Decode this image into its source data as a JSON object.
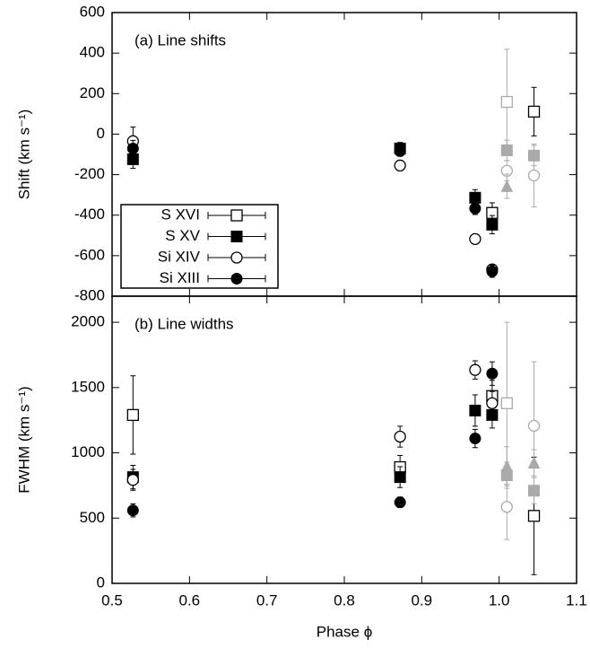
{
  "chart_data": [
    {
      "type": "scatter",
      "annotation": "(a) Line shifts",
      "ylabel": "Shift (km s⁻¹)",
      "xlim": [
        0.5,
        1.1
      ],
      "xticks": [
        0.5,
        0.6,
        0.7,
        0.8,
        0.9,
        1,
        1.1
      ],
      "ylim": [
        -800,
        600
      ],
      "yticks": [
        -800,
        -600,
        -400,
        -200,
        0,
        200,
        400,
        600
      ],
      "legend": "lower left",
      "series": [
        {
          "name": "S XVI",
          "color": "#000000",
          "marker": "open-square",
          "x": [
            0.991,
            1.045
          ],
          "values": [
            -389,
            111
          ],
          "errors": [
            50,
            120
          ]
        },
        {
          "name": "S XV",
          "color": "#000000",
          "marker": "filled-square",
          "x": [
            0.527,
            0.872,
            0.969,
            0.991
          ],
          "values": [
            -124,
            -71,
            -314,
            -447
          ],
          "errors": [
            45,
            30,
            40,
            45
          ]
        },
        {
          "name": "Si XIV",
          "color": "#000000",
          "marker": "open-circle",
          "x": [
            0.527,
            0.872,
            0.969,
            0.991
          ],
          "values": [
            -35,
            -155,
            -518,
            -668
          ],
          "errors": [
            70,
            25,
            25,
            25
          ]
        },
        {
          "name": "Si XIII",
          "color": "#000000",
          "marker": "filled-circle",
          "x": [
            0.527,
            0.872,
            0.969,
            0.991
          ],
          "values": [
            -71,
            -84,
            -367,
            -677
          ],
          "errors": [
            40,
            25,
            30,
            30
          ]
        },
        {
          "color": "#aaaaaa",
          "marker": "open-square",
          "x": [
            1.01
          ],
          "values": [
            159
          ],
          "errors": [
            260
          ]
        },
        {
          "color": "#aaaaaa",
          "marker": "filled-square",
          "x": [
            1.01,
            1.045
          ],
          "values": [
            -80,
            -106
          ],
          "errors": [
            50,
            50
          ]
        },
        {
          "color": "#aaaaaa",
          "marker": "open-circle",
          "x": [
            1.01,
            1.045
          ],
          "values": [
            -181,
            -204
          ],
          "errors": [
            50,
            155
          ]
        },
        {
          "color": "#aaaaaa",
          "marker": "filled-triangle",
          "x": [
            1.01
          ],
          "values": [
            -257
          ],
          "errors": [
            60
          ]
        }
      ]
    },
    {
      "type": "scatter",
      "annotation": "(b) Line widths",
      "ylabel": "FWHM (km s⁻¹)",
      "xlabel": "Phase ϕ",
      "xlim": [
        0.5,
        1.1
      ],
      "xticks": [
        0.5,
        0.6,
        0.7,
        0.8,
        0.9,
        {
          "value": 1,
          "label": "1.0"
        },
        1.1
      ],
      "ylim": [
        0,
        2200
      ],
      "yticks": [
        0,
        500,
        1000,
        1500,
        2000
      ],
      "series": [
        {
          "color": "#000000",
          "marker": "open-square",
          "x": [
            0.527,
            0.872,
            0.991,
            1.045
          ],
          "values": [
            1290,
            890,
            1435,
            517
          ],
          "errors": [
            300,
            90,
            120,
            450
          ]
        },
        {
          "color": "#000000",
          "marker": "filled-square",
          "x": [
            0.527,
            0.872,
            0.969,
            0.991
          ],
          "values": [
            814,
            814,
            1324,
            1290
          ],
          "errors": [
            90,
            80,
            120,
            100
          ]
        },
        {
          "color": "#000000",
          "marker": "open-circle",
          "x": [
            0.527,
            0.872,
            0.969,
            0.991
          ],
          "values": [
            793,
            1124,
            1635,
            1380
          ],
          "errors": [
            80,
            80,
            70,
            90
          ]
        },
        {
          "color": "#000000",
          "marker": "filled-circle",
          "x": [
            0.527,
            0.872,
            0.969,
            0.991
          ],
          "values": [
            559,
            621,
            1110,
            1607
          ],
          "errors": [
            50,
            40,
            70,
            90
          ]
        },
        {
          "color": "#aaaaaa",
          "marker": "open-square",
          "x": [
            1.01
          ],
          "values": [
            1380
          ],
          "errors": [
            620
          ]
        },
        {
          "color": "#aaaaaa",
          "marker": "filled-square",
          "x": [
            1.01,
            1.045
          ],
          "values": [
            828,
            710
          ],
          "errors": [
            100,
            100
          ]
        },
        {
          "color": "#aaaaaa",
          "marker": "open-circle",
          "x": [
            1.01,
            1.045
          ],
          "values": [
            586,
            1207
          ],
          "errors": [
            250,
            490
          ]
        },
        {
          "color": "#aaaaaa",
          "marker": "filled-triangle",
          "x": [
            1.01,
            1.045
          ],
          "values": [
            897,
            924
          ],
          "errors": [
            150,
            100
          ]
        }
      ]
    }
  ]
}
